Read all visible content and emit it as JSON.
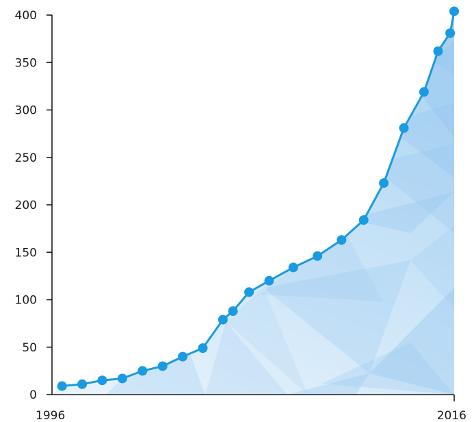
{
  "chart_data": {
    "type": "area",
    "title": "",
    "xlabel": "",
    "ylabel": "",
    "x_tick_labels": [
      "1996",
      "2016"
    ],
    "y_ticks": [
      0,
      50,
      100,
      150,
      200,
      250,
      300,
      350,
      400
    ],
    "y_tick_labels": [
      "0",
      "50",
      "100",
      "150",
      "200",
      "250",
      "300",
      "350",
      "400"
    ],
    "ylim": [
      0,
      400
    ],
    "xlim": [
      1996,
      2016
    ],
    "grid": false,
    "line_color": "#1a9ae0",
    "fill_color": "#a9d3f2",
    "series": [
      {
        "x": [
          1996.5,
          1997.5,
          1998.5,
          1999.5,
          2000.5,
          2001.5,
          2002.5,
          2003.5,
          2004.5,
          2005.0,
          2005.8,
          2006.8,
          2008.0,
          2009.2,
          2010.4,
          2011.5,
          2012.5,
          2013.5,
          2014.5,
          2015.2,
          2015.8,
          2016.0
        ],
        "y": [
          9,
          11,
          15,
          17,
          25,
          30,
          40,
          49,
          79,
          88,
          108,
          120,
          134,
          146,
          163,
          184,
          223,
          281,
          319,
          362,
          381,
          404
        ]
      }
    ]
  }
}
